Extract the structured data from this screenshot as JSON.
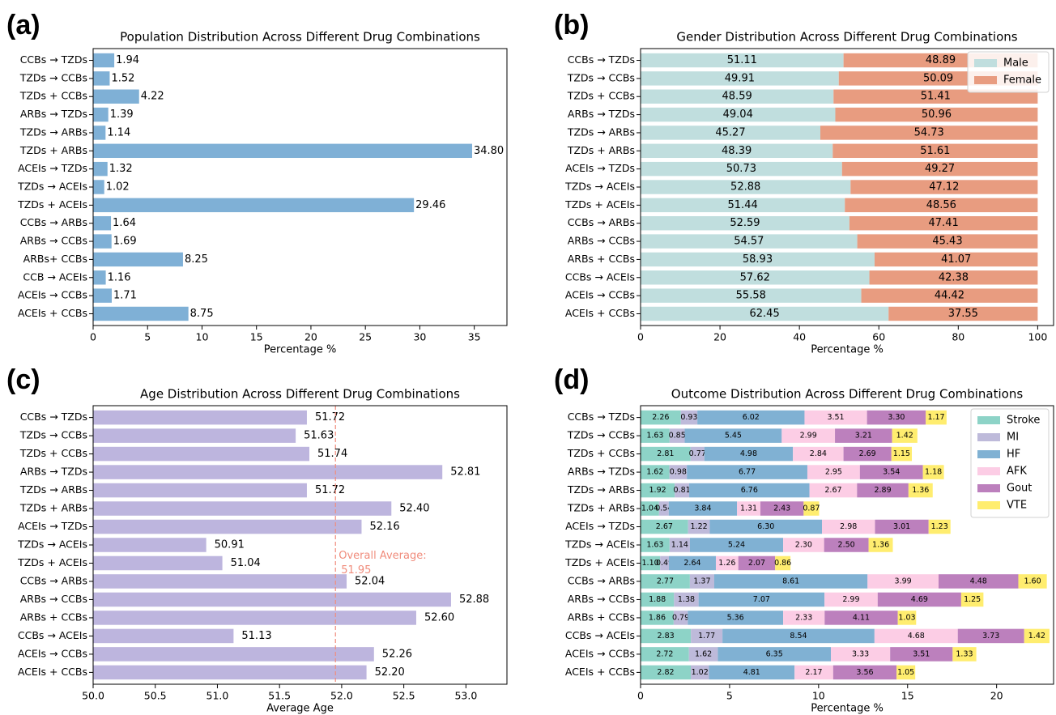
{
  "chart_data": [
    {
      "panel": "(a)",
      "type": "bar",
      "orientation": "horizontal",
      "title": "Population Distribution Across Different Drug Combinations",
      "xlabel": "Percentage %",
      "ylabel": "",
      "xlim": [
        0,
        38
      ],
      "xticks": [
        0,
        5,
        10,
        15,
        20,
        25,
        30,
        35
      ],
      "categories": [
        "CCBs → TZDs",
        "TZDs → CCBs",
        "TZDs + CCBs",
        "ARBs → TZDs",
        "TZDs → ARBs",
        "TZDs + ARBs",
        "ACEIs → TZDs",
        "TZDs → ACEIs",
        "TZDs + ACEIs",
        "CCBs → ARBs",
        "ARBs → CCBs",
        "ARBs+ CCBs",
        "CCB → ACEIs",
        "ACEIs → CCBs",
        "ACEIs + CCBs"
      ],
      "values": [
        1.94,
        1.52,
        4.22,
        1.39,
        1.14,
        34.8,
        1.32,
        1.02,
        29.46,
        1.64,
        1.69,
        8.25,
        1.16,
        1.71,
        8.75
      ],
      "value_labels": [
        "1.94",
        "1.52",
        "4.22",
        "1.39",
        "1.14",
        "34.80",
        "1.32",
        "1.02",
        "29.46",
        "1.64",
        "1.69",
        "8.25",
        "1.16",
        "1.71",
        "8.75"
      ],
      "color": "#7fb0d6"
    },
    {
      "panel": "(b)",
      "type": "bar",
      "orientation": "horizontal",
      "stacked": true,
      "title": "Gender Distribution Across Different Drug Combinations",
      "xlabel": "Percentage %",
      "ylabel": "",
      "xlim": [
        0,
        104
      ],
      "xticks": [
        0,
        20,
        40,
        60,
        80,
        100
      ],
      "categories": [
        "CCBs → TZDs",
        "TZDs → CCBs",
        "TZDs + CCBs",
        "ARBs → TZDs",
        "TZDs → ARBs",
        "TZDs + ARBs",
        "ACEIs → TZDs",
        "TZDs → ACEIs",
        "TZDs + ACEIs",
        "CCBs → ARBs",
        "ARBs → CCBs",
        "ARBs + CCBs",
        "CCBs → ACEIs",
        "ACEIs → CCBs",
        "ACEIs + CCBs"
      ],
      "series": [
        {
          "name": "Male",
          "color": "#c0dede",
          "values": [
            51.11,
            49.91,
            48.59,
            49.04,
            45.27,
            48.39,
            50.73,
            52.88,
            51.44,
            52.59,
            54.57,
            58.93,
            57.62,
            55.58,
            62.45
          ],
          "labels": [
            "51.11",
            "49.91",
            "48.59",
            "49.04",
            "45.27",
            "48.39",
            "50.73",
            "52.88",
            "51.44",
            "52.59",
            "54.57",
            "58.93",
            "57.62",
            "55.58",
            "62.45"
          ]
        },
        {
          "name": "Female",
          "color": "#e89c80",
          "values": [
            48.89,
            50.09,
            51.41,
            50.96,
            54.73,
            51.61,
            49.27,
            47.12,
            48.56,
            47.41,
            45.43,
            41.07,
            42.38,
            44.42,
            37.55
          ],
          "labels": [
            "48.89",
            "50.09",
            "51.41",
            "50.96",
            "54.73",
            "51.61",
            "49.27",
            "47.12",
            "48.56",
            "47.41",
            "45.43",
            "41.07",
            "42.38",
            "44.42",
            "37.55"
          ]
        }
      ],
      "legend": "top-right"
    },
    {
      "panel": "(c)",
      "type": "bar",
      "orientation": "horizontal",
      "title": "Age Distribution Across Different Drug Combinations",
      "xlabel": "Average Age",
      "ylabel": "",
      "xlim": [
        50.0,
        53.33
      ],
      "xticks": [
        50.0,
        50.5,
        51.0,
        51.5,
        52.0,
        52.5,
        53.0
      ],
      "xtick_labels": [
        "50.0",
        "50.5",
        "51.0",
        "51.5",
        "52.0",
        "52.5",
        "53.0"
      ],
      "categories": [
        "CCBs → TZDs",
        "TZDs → CCBs",
        "TZDs + CCBs",
        "ARBs → TZDs",
        "TZDs → ARBs",
        "TZDs + ARBs",
        "ACEIs → TZDs",
        "TZDs → ACEIs",
        "TZDs + ACEIs",
        "CCBs → ARBs",
        "ARBs → CCBs",
        "ARBs + CCBs",
        "CCBs → ACEIs",
        "ACEIs → CCBs",
        "ACEIs + CCBs"
      ],
      "values": [
        51.72,
        51.63,
        51.74,
        52.81,
        51.72,
        52.4,
        52.16,
        50.91,
        51.04,
        52.04,
        52.88,
        52.6,
        51.13,
        52.26,
        52.2
      ],
      "value_labels": [
        "51.72",
        "51.63",
        "51.74",
        "52.81",
        "51.72",
        "52.40",
        "52.16",
        "50.91",
        "51.04",
        "52.04",
        "52.88",
        "52.60",
        "51.13",
        "52.26",
        "52.20"
      ],
      "color": "#bdb5de",
      "reference_line": {
        "value": 51.95,
        "label_line1": "Overall Average:",
        "label_line2": "51.95",
        "color": "#f08c7c"
      }
    },
    {
      "panel": "(d)",
      "type": "bar",
      "orientation": "horizontal",
      "stacked": true,
      "title": "Outcome Distribution Across Different Drug Combinations",
      "xlabel": "Percentage %",
      "ylabel": "",
      "xlim": [
        0,
        23.2
      ],
      "xticks": [
        0,
        5,
        10,
        15,
        20
      ],
      "categories": [
        "CCBs → TZDs",
        "TZDs → CCBs",
        "TZDs + CCBs",
        "ARBs → TZDs",
        "TZDs → ARBs",
        "TZDs + ARBs",
        "ACEIs → TZDs",
        "TZDs → ACEIs",
        "TZDs + ACEIs",
        "CCBs → ARBs",
        "ARBs → CCBs",
        "ARBs + CCBs",
        "CCBs → ACEIs",
        "ACEIs → CCBs",
        "ACEIs + CCBs"
      ],
      "series": [
        {
          "name": "Stroke",
          "color": "#8dd3c7",
          "values": [
            2.26,
            1.63,
            2.81,
            1.62,
            1.92,
            1.04,
            2.67,
            1.63,
            1.1,
            2.77,
            1.88,
            1.86,
            2.83,
            2.72,
            2.82
          ],
          "labels": [
            "2.26",
            "1.63",
            "2.81",
            "1.62",
            "1.92",
            "1.04",
            "2.67",
            "1.63",
            "1.10",
            "2.77",
            "1.88",
            "1.86",
            "2.83",
            "2.72",
            "2.82"
          ]
        },
        {
          "name": "MI",
          "color": "#bebada",
          "values": [
            0.93,
            0.85,
            0.77,
            0.98,
            0.81,
            0.54,
            1.22,
            1.14,
            0.49,
            1.37,
            1.38,
            0.79,
            1.77,
            1.62,
            1.02
          ],
          "labels": [
            "0.93",
            "0.85",
            "0.77",
            "0.98",
            "0.81",
            "0.54",
            "1.22",
            "1.14",
            "0.49",
            "1.37",
            "1.38",
            "0.79",
            "1.77",
            "1.62",
            "1.02"
          ]
        },
        {
          "name": "HF",
          "color": "#80b1d3",
          "values": [
            6.02,
            5.45,
            4.98,
            6.77,
            6.76,
            3.84,
            6.3,
            5.24,
            2.64,
            8.61,
            7.07,
            5.36,
            8.54,
            6.35,
            4.81
          ],
          "labels": [
            "6.02",
            "5.45",
            "4.98",
            "6.77",
            "6.76",
            "3.84",
            "6.30",
            "5.24",
            "2.64",
            "8.61",
            "7.07",
            "5.36",
            "8.54",
            "6.35",
            "4.81"
          ]
        },
        {
          "name": "AFK",
          "color": "#fccde5",
          "values": [
            3.51,
            2.99,
            2.84,
            2.95,
            2.67,
            1.31,
            2.98,
            2.3,
            1.26,
            3.99,
            2.99,
            2.33,
            4.68,
            3.33,
            2.17
          ],
          "labels": [
            "3.51",
            "2.99",
            "2.84",
            "2.95",
            "2.67",
            "1.31",
            "2.98",
            "2.30",
            "1.26",
            "3.99",
            "2.99",
            "2.33",
            "4.68",
            "3.33",
            "2.17"
          ]
        },
        {
          "name": "Gout",
          "color": "#bc80bd",
          "values": [
            3.3,
            3.21,
            2.69,
            3.54,
            2.89,
            2.43,
            3.01,
            2.5,
            2.07,
            4.48,
            4.69,
            4.11,
            3.73,
            3.51,
            3.56
          ],
          "labels": [
            "3.30",
            "3.21",
            "2.69",
            "3.54",
            "2.89",
            "2.43",
            "3.01",
            "2.50",
            "2.07",
            "4.48",
            "4.69",
            "4.11",
            "3.73",
            "3.51",
            "3.56"
          ]
        },
        {
          "name": "VTE",
          "color": "#ffed6f",
          "values": [
            1.17,
            1.42,
            1.15,
            1.18,
            1.36,
            0.87,
            1.23,
            1.36,
            0.86,
            1.6,
            1.25,
            1.03,
            1.42,
            1.33,
            1.05
          ],
          "labels": [
            "1.17",
            "1.42",
            "1.15",
            "1.18",
            "1.36",
            "0.87",
            "1.23",
            "1.36",
            "0.86",
            "1.60",
            "1.25",
            "1.03",
            "1.42",
            "1.33",
            "1.05"
          ]
        }
      ],
      "legend": "top-right"
    }
  ],
  "panel_letters": {
    "a": "(a)",
    "b": "(b)",
    "c": "(c)",
    "d": "(d)"
  }
}
